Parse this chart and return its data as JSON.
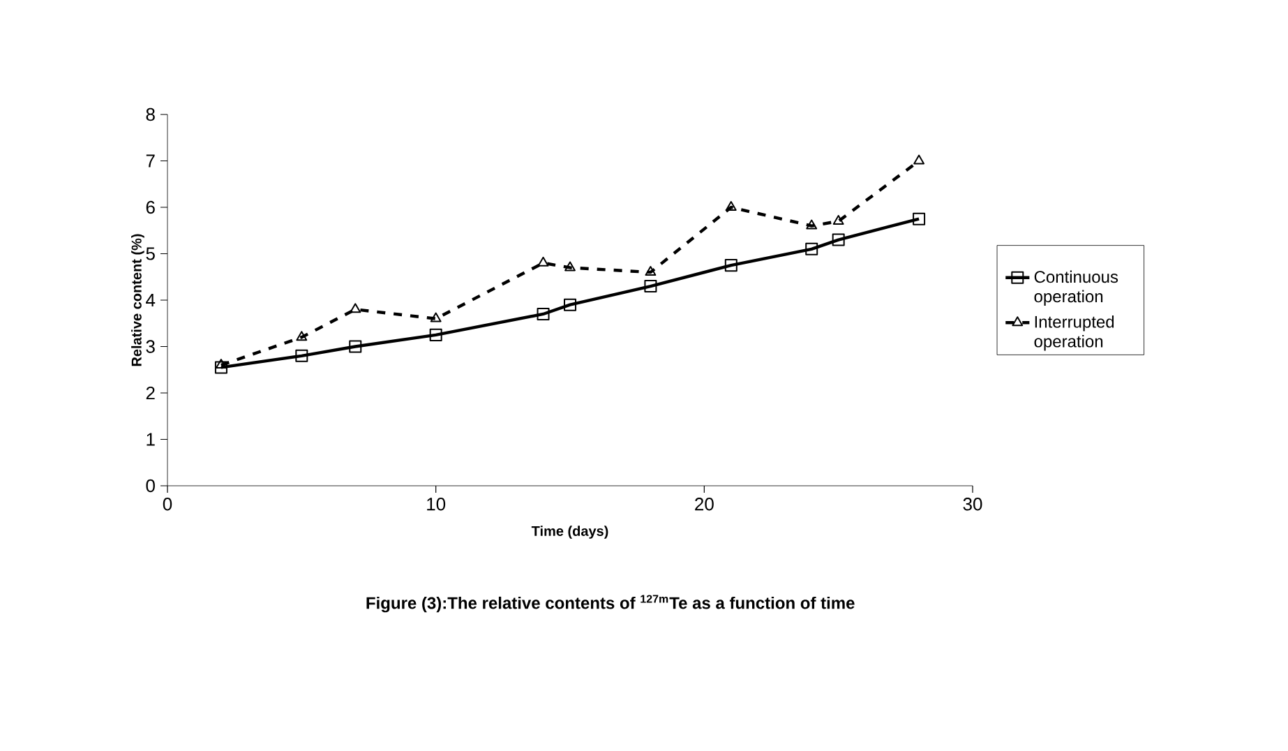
{
  "chart_data": {
    "type": "line",
    "title": "Figure (3):The relative contents of $^{127m}$Te as a function of time",
    "xlabel": "Time (days)",
    "ylabel": "Relative content (%)",
    "xlim": [
      0,
      30
    ],
    "xticks": [
      0,
      10,
      20,
      30
    ],
    "ylim": [
      0,
      8
    ],
    "yticks": [
      0,
      1,
      2,
      3,
      4,
      5,
      6,
      7,
      8
    ],
    "grid": false,
    "legend": "right",
    "series": [
      {
        "name": "Continuous operation",
        "color": "#000000",
        "marker": "square",
        "line_style": "solid",
        "x": [
          2,
          5,
          7,
          10,
          14,
          15,
          18,
          21,
          24,
          25,
          28
        ],
        "values": [
          2.55,
          2.8,
          3.0,
          3.25,
          3.7,
          3.9,
          4.3,
          4.75,
          5.1,
          5.3,
          5.75
        ]
      },
      {
        "name": "Interrupted operation",
        "color": "#000000",
        "marker": "triangle",
        "line_style": "dashed",
        "x": [
          2,
          5,
          7,
          10,
          14,
          15,
          18,
          21,
          24,
          25,
          28
        ],
        "values": [
          2.6,
          3.2,
          3.8,
          3.6,
          4.8,
          4.7,
          4.6,
          6.0,
          5.6,
          5.7,
          7.0
        ]
      }
    ]
  }
}
